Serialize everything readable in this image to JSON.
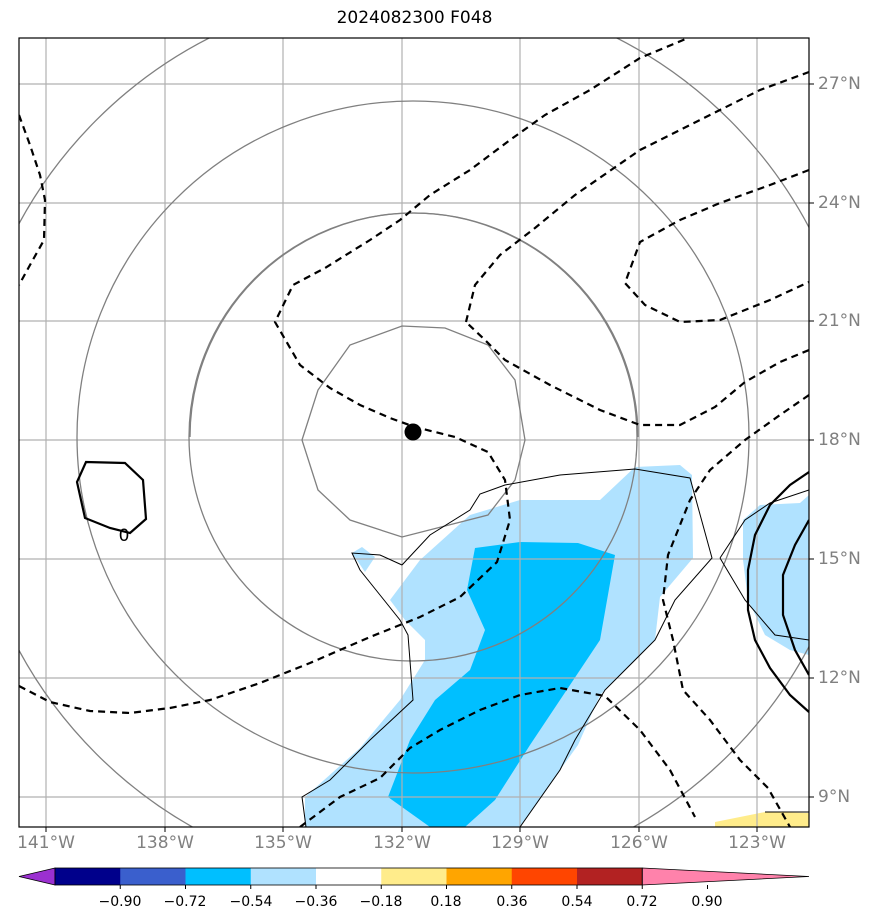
{
  "title": "2024082300 F048",
  "map": {
    "lon_range": [
      -141.7,
      -121.7
    ],
    "lat_range": [
      8.2,
      28.1
    ],
    "longitude_ticks": [
      "141°W",
      "138°W",
      "135°W",
      "132°W",
      "129°W",
      "126°W",
      "123°W"
    ],
    "latitude_ticks": [
      "9°N",
      "12°N",
      "15°N",
      "18°N",
      "21°N",
      "24°N",
      "27°N"
    ],
    "storm_center": {
      "lon": -131.7,
      "lat": 18.2
    },
    "contour_label": "0"
  },
  "colorbar": {
    "ticks": [
      "−0.90",
      "−0.72",
      "−0.54",
      "−0.36",
      "−0.18",
      "0.18",
      "0.36",
      "0.54",
      "0.72",
      "0.90"
    ],
    "colors": [
      "#9b30d0",
      "#00008b",
      "#3a5fcd",
      "#00bfff",
      "#b0e2ff",
      "#ffffff",
      "#ffec8b",
      "#ffa500",
      "#ff4500",
      "#b22222",
      "#ff82ab"
    ],
    "extend": "both"
  },
  "colors": {
    "light_blue": "#b0e2ff",
    "deep_sky_blue": "#00bfff",
    "light_yellow": "#ffec8b",
    "grid": "#b0b0b0",
    "circle": "#808080"
  }
}
